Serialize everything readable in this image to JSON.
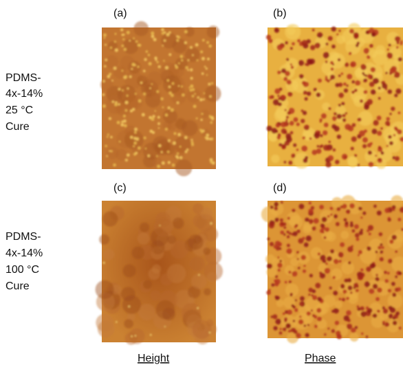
{
  "panels": [
    {
      "label": "(a)"
    },
    {
      "label": "(b)"
    },
    {
      "label": "(c)"
    },
    {
      "label": "(d)"
    }
  ],
  "rows": [
    {
      "lines": [
        "PDMS-",
        "4x-14%",
        "25 °C",
        "Cure"
      ]
    },
    {
      "lines": [
        "PDMS-",
        "4x-14%",
        "100 °C",
        "Cure"
      ]
    }
  ],
  "columns": [
    "Height",
    "Phase"
  ]
}
